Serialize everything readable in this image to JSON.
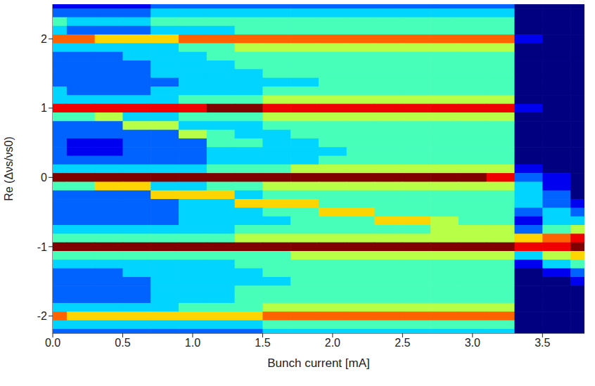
{
  "chart_data": {
    "type": "heatmap",
    "xlabel": "Bunch current [mA]",
    "ylabel": "Re (Δνs/νs0)",
    "xlim": [
      0,
      3.8
    ],
    "ylim": [
      -2.25,
      2.5
    ],
    "xticks": [
      {
        "value": 0,
        "label": "0.0"
      },
      0.5,
      {
        "value": 1,
        "label": "1.0"
      },
      1.5,
      {
        "value": 2,
        "label": "2.0"
      },
      2.5,
      {
        "value": 3,
        "label": "3.0"
      },
      3.5
    ],
    "yticks": [
      -2,
      -1,
      0,
      1,
      2
    ],
    "grid": true,
    "zlim": [
      0,
      9
    ],
    "x": [
      0.0,
      0.2,
      0.4,
      0.6,
      0.8,
      1.0,
      1.2,
      1.4,
      1.6,
      1.8,
      2.0,
      2.2,
      2.4,
      2.6,
      2.8,
      3.0,
      3.2,
      3.4,
      3.6,
      3.8
    ],
    "y": [
      2.5,
      2.375,
      2.25,
      2.125,
      2.0,
      1.875,
      1.75,
      1.625,
      1.5,
      1.375,
      1.25,
      1.125,
      1.0,
      0.875,
      0.75,
      0.625,
      0.5,
      0.375,
      0.25,
      0.125,
      0.0,
      -0.125,
      -0.25,
      -0.375,
      -0.5,
      -0.625,
      -0.75,
      -0.875,
      -1.0,
      -1.125,
      -1.25,
      -1.375,
      -1.5,
      -1.625,
      -1.75,
      -1.875,
      -2.0,
      -2.125,
      -2.25
    ],
    "z": [
      [
        1,
        1,
        1,
        1,
        2,
        2,
        2,
        2,
        2,
        2,
        2,
        2,
        2,
        2,
        2,
        2,
        2,
        0,
        0,
        0
      ],
      [
        2,
        2,
        2,
        2,
        3,
        3,
        3,
        3,
        3,
        3,
        3,
        3,
        3,
        3,
        3,
        3,
        3,
        0,
        0,
        0
      ],
      [
        4,
        3,
        3,
        3,
        4,
        4,
        4,
        4,
        4,
        4,
        4,
        4,
        4,
        4,
        4,
        4,
        4,
        0,
        0,
        0
      ],
      [
        3,
        2,
        2,
        2,
        3,
        3,
        3,
        4,
        4,
        4,
        4,
        4,
        4,
        4,
        4,
        4,
        4,
        0,
        0,
        0
      ],
      [
        7,
        7,
        6,
        6,
        6,
        7,
        7,
        7,
        7,
        7,
        7,
        7,
        7,
        7,
        7,
        7,
        7,
        1,
        0,
        0
      ],
      [
        3,
        3,
        3,
        3,
        3,
        4,
        4,
        5,
        5,
        5,
        5,
        5,
        5,
        5,
        5,
        5,
        5,
        0,
        0,
        0
      ],
      [
        2,
        2,
        2,
        3,
        3,
        3,
        4,
        4,
        4,
        4,
        4,
        4,
        4,
        4,
        4,
        4,
        4,
        0,
        0,
        0
      ],
      [
        2,
        2,
        2,
        2,
        3,
        3,
        3,
        4,
        4,
        4,
        4,
        4,
        4,
        4,
        4,
        4,
        4,
        0,
        0,
        0
      ],
      [
        2,
        2,
        2,
        2,
        3,
        3,
        3,
        3,
        4,
        4,
        4,
        4,
        4,
        4,
        4,
        4,
        4,
        0,
        0,
        0
      ],
      [
        2,
        2,
        2,
        2,
        2,
        3,
        3,
        3,
        3,
        3,
        4,
        4,
        4,
        4,
        4,
        4,
        4,
        0,
        0,
        0
      ],
      [
        3,
        2,
        2,
        2,
        3,
        3,
        3,
        3,
        4,
        4,
        4,
        4,
        4,
        4,
        4,
        4,
        4,
        0,
        0,
        0
      ],
      [
        3,
        3,
        3,
        3,
        3,
        4,
        4,
        4,
        5,
        5,
        5,
        5,
        5,
        5,
        5,
        5,
        5,
        0,
        0,
        0
      ],
      [
        8,
        8,
        8,
        8,
        8,
        8,
        9,
        9,
        8,
        8,
        8,
        8,
        8,
        8,
        8,
        8,
        8,
        1,
        0,
        0
      ],
      [
        4,
        4,
        5,
        3,
        3,
        4,
        4,
        4,
        5,
        5,
        5,
        5,
        5,
        5,
        5,
        5,
        5,
        0,
        0,
        0
      ],
      [
        2,
        2,
        2,
        5,
        5,
        3,
        3,
        3,
        4,
        4,
        4,
        4,
        4,
        4,
        4,
        4,
        4,
        0,
        0,
        0
      ],
      [
        2,
        2,
        2,
        2,
        2,
        5,
        4,
        3,
        3,
        4,
        4,
        4,
        4,
        4,
        4,
        4,
        4,
        0,
        0,
        0
      ],
      [
        2,
        1,
        1,
        2,
        2,
        2,
        4,
        4,
        3,
        3,
        4,
        4,
        4,
        4,
        4,
        4,
        4,
        0,
        0,
        0
      ],
      [
        2,
        1,
        1,
        2,
        2,
        2,
        3,
        3,
        3,
        3,
        3,
        4,
        4,
        4,
        4,
        4,
        4,
        0,
        0,
        0
      ],
      [
        2,
        2,
        2,
        2,
        2,
        2,
        3,
        3,
        3,
        3,
        4,
        4,
        4,
        4,
        4,
        4,
        4,
        0,
        0,
        0
      ],
      [
        3,
        3,
        3,
        3,
        3,
        3,
        4,
        4,
        4,
        5,
        5,
        5,
        5,
        5,
        5,
        5,
        5,
        1,
        0,
        0
      ],
      [
        9,
        9,
        9,
        9,
        9,
        9,
        9,
        9,
        9,
        9,
        9,
        9,
        9,
        9,
        9,
        9,
        8,
        2,
        1,
        0
      ],
      [
        4,
        4,
        6,
        6,
        3,
        3,
        4,
        4,
        5,
        5,
        5,
        5,
        5,
        5,
        5,
        5,
        5,
        3,
        1,
        0
      ],
      [
        2,
        2,
        2,
        2,
        6,
        6,
        6,
        3,
        4,
        4,
        4,
        4,
        4,
        4,
        4,
        4,
        4,
        3,
        2,
        0
      ],
      [
        2,
        2,
        2,
        2,
        2,
        3,
        3,
        6,
        6,
        6,
        4,
        4,
        4,
        4,
        4,
        4,
        4,
        3,
        2,
        1
      ],
      [
        2,
        2,
        2,
        2,
        2,
        3,
        3,
        3,
        4,
        4,
        6,
        6,
        4,
        4,
        4,
        4,
        4,
        2,
        3,
        2
      ],
      [
        2,
        2,
        2,
        2,
        2,
        3,
        3,
        3,
        3,
        4,
        4,
        4,
        6,
        6,
        5,
        4,
        4,
        1,
        3,
        3
      ],
      [
        3,
        3,
        3,
        3,
        3,
        3,
        3,
        4,
        4,
        4,
        4,
        4,
        4,
        4,
        5,
        5,
        5,
        2,
        4,
        5
      ],
      [
        4,
        4,
        4,
        4,
        4,
        4,
        4,
        5,
        5,
        5,
        5,
        5,
        5,
        5,
        5,
        5,
        5,
        6,
        7,
        8
      ],
      [
        9,
        9,
        9,
        9,
        9,
        9,
        9,
        9,
        9,
        9,
        9,
        9,
        9,
        9,
        9,
        9,
        9,
        8,
        8,
        9
      ],
      [
        4,
        4,
        4,
        4,
        4,
        4,
        4,
        4,
        4,
        5,
        5,
        5,
        5,
        5,
        5,
        5,
        5,
        3,
        5,
        6
      ],
      [
        3,
        3,
        3,
        3,
        3,
        3,
        3,
        4,
        4,
        4,
        4,
        4,
        4,
        4,
        4,
        4,
        4,
        1,
        3,
        4
      ],
      [
        2,
        2,
        2,
        3,
        3,
        3,
        3,
        3,
        4,
        4,
        4,
        4,
        4,
        4,
        4,
        4,
        4,
        0,
        1,
        2
      ],
      [
        2,
        2,
        2,
        2,
        3,
        3,
        3,
        3,
        3,
        4,
        4,
        4,
        4,
        4,
        4,
        4,
        4,
        0,
        0,
        1
      ],
      [
        2,
        2,
        2,
        2,
        3,
        3,
        3,
        4,
        4,
        4,
        4,
        4,
        4,
        4,
        4,
        4,
        4,
        0,
        0,
        0
      ],
      [
        2,
        2,
        2,
        2,
        3,
        3,
        3,
        4,
        4,
        4,
        4,
        4,
        4,
        4,
        4,
        4,
        4,
        0,
        0,
        0
      ],
      [
        3,
        3,
        3,
        3,
        3,
        4,
        4,
        4,
        5,
        5,
        5,
        5,
        5,
        5,
        5,
        5,
        5,
        0,
        0,
        0
      ],
      [
        7,
        6,
        6,
        6,
        6,
        6,
        6,
        6,
        7,
        7,
        7,
        7,
        7,
        7,
        7,
        7,
        7,
        0,
        0,
        0
      ],
      [
        3,
        3,
        3,
        3,
        3,
        3,
        3,
        3,
        4,
        4,
        4,
        4,
        4,
        4,
        4,
        4,
        4,
        0,
        0,
        0
      ],
      [
        2,
        2,
        2,
        2,
        2,
        2,
        2,
        2,
        3,
        3,
        3,
        3,
        3,
        3,
        3,
        3,
        3,
        0,
        0,
        0
      ]
    ]
  }
}
